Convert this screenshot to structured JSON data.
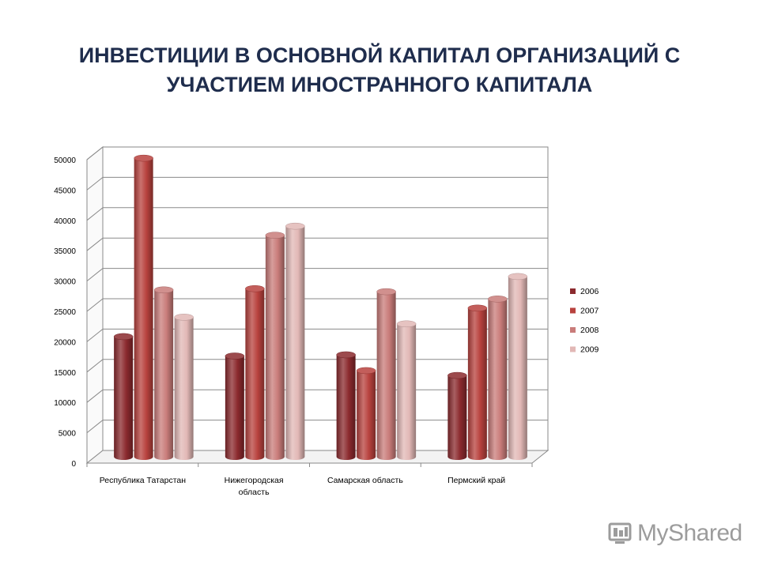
{
  "title_lines": [
    "ИНВЕСТИЦИИ В ОСНОВНОЙ КАПИТАЛ ОРГАНИЗАЦИЙ С",
    "УЧАСТИЕМ ИНОСТРАННОГО КАПИТАЛА"
  ],
  "watermark": "MyShared",
  "colors": {
    "title": "#1f2d4d",
    "series": [
      "#8b2a2e",
      "#b8423e",
      "#c97c7a",
      "#e2b8b6"
    ]
  },
  "chart_data": {
    "type": "bar",
    "title": "ИНВЕСТИЦИИ В ОСНОВНОЙ КАПИТАЛ ОРГАНИЗАЦИЙ С УЧАСТИЕМ ИНОСТРАННОГО КАПИТАЛА",
    "categories": [
      [
        "Республика Татарстан"
      ],
      [
        "Нижегородская",
        "область"
      ],
      [
        "Самарская область"
      ],
      [
        "Пермский край"
      ]
    ],
    "series": [
      {
        "name": "2006",
        "values": [
          19800,
          16600,
          16800,
          13400
        ]
      },
      {
        "name": "2007",
        "values": [
          49200,
          27700,
          14200,
          24500
        ]
      },
      {
        "name": "2008",
        "values": [
          27500,
          36500,
          27200,
          26000
        ]
      },
      {
        "name": "2009",
        "values": [
          23000,
          38000,
          21900,
          29700
        ]
      }
    ],
    "yticks": [
      "0",
      "5000",
      "10000",
      "15000",
      "20000",
      "25000",
      "30000",
      "35000",
      "40000",
      "45000",
      "50000"
    ],
    "ylim": [
      0,
      50000
    ],
    "grid": true,
    "legend": "right",
    "style": "3d-cylinder"
  }
}
